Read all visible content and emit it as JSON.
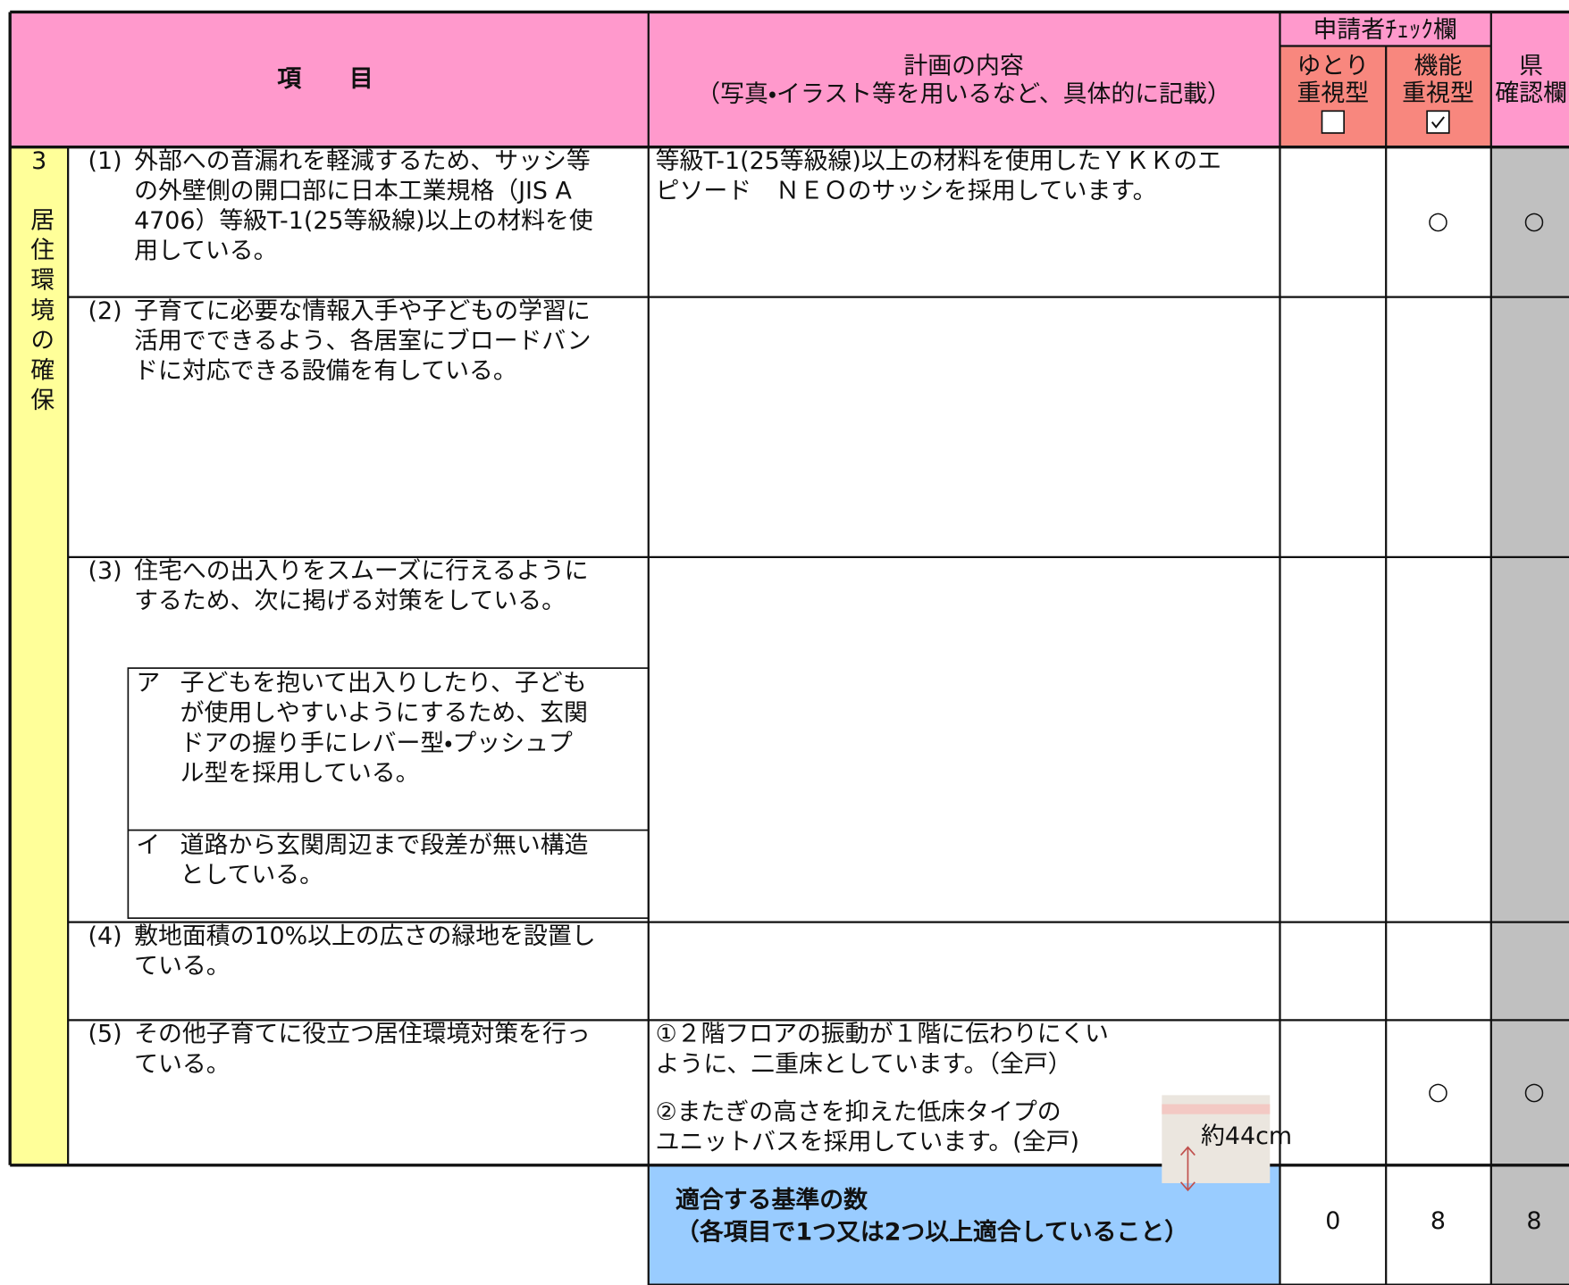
{
  "header": {
    "item": "項　　目",
    "plan_title": "計画の内容",
    "plan_subtitle": "（写真・イラスト等を用いるなど、具体的に記載）",
    "check_title": "申請者ﾁｪｯｸ欄",
    "yutori": [
      "ゆとり",
      "重視型"
    ],
    "kinou": [
      "機能",
      "重視型"
    ],
    "ken": [
      "県",
      "確認欄"
    ]
  },
  "section": {
    "number": "3",
    "title": "居住環境の確保"
  },
  "items": [
    {
      "number": "(1)",
      "text": [
        "外部への音漏れを軽減するため、サッシ等",
        "の外壁側の開口部に日本工業規格（JIS A",
        "4706）等級T-1(25等級線)以上の材料を使",
        "用している。"
      ],
      "plan": [
        "等級T-1(25等級線)以上の材料を使用したＹＫＫのエ",
        "ピソード　ＮＥＯのサッシを採用しています。"
      ],
      "kinou_mark": "○",
      "ken_mark": "○"
    },
    {
      "number": "(2)",
      "text": [
        "子育てに必要な情報入手や子どもの学習に",
        "活用でできるよう、各居室にブロードバン",
        "ドに対応できる設備を有している。"
      ]
    },
    {
      "number": "(3)",
      "text": [
        "住宅への出入りをスムーズに行えるように",
        "するため、次に掲げる対策をしている。"
      ],
      "subitems": [
        {
          "label": "ア",
          "text": [
            "子どもを抱いて出入りしたり、子ども",
            "が使用しやすいようにするため、玄関",
            "ドアの握り手にレバー型・プッシュプ",
            "ル型を採用している。"
          ]
        },
        {
          "label": "イ",
          "text": [
            "道路から玄関周辺まで段差が無い構造",
            "としている。"
          ]
        }
      ]
    },
    {
      "number": "(4)",
      "text": [
        "敷地面積の10%以上の広さの緑地を設置し",
        "ている。"
      ]
    },
    {
      "number": "(5)",
      "text": [
        "その他子育てに役立つ居住環境対策を行っ",
        "ている。"
      ],
      "plan_paragraphs": [
        [
          "①２階フロアの振動が１階に伝わりにくい",
          "ように、二重床としています。（全戸）"
        ],
        [
          "②またぎの高さを抑えた低床タイプの",
          "ユニットバスを採用しています。(全戸)"
        ]
      ],
      "image_label": "約44cm",
      "kinou_mark": "○",
      "ken_mark": "○"
    }
  ],
  "footer": {
    "label": [
      "適合する基準の数",
      "（各項目で1つ又は2つ以上適合していること）"
    ],
    "yutori_count": 0,
    "kinou_count": 8,
    "ken_count": 8
  }
}
